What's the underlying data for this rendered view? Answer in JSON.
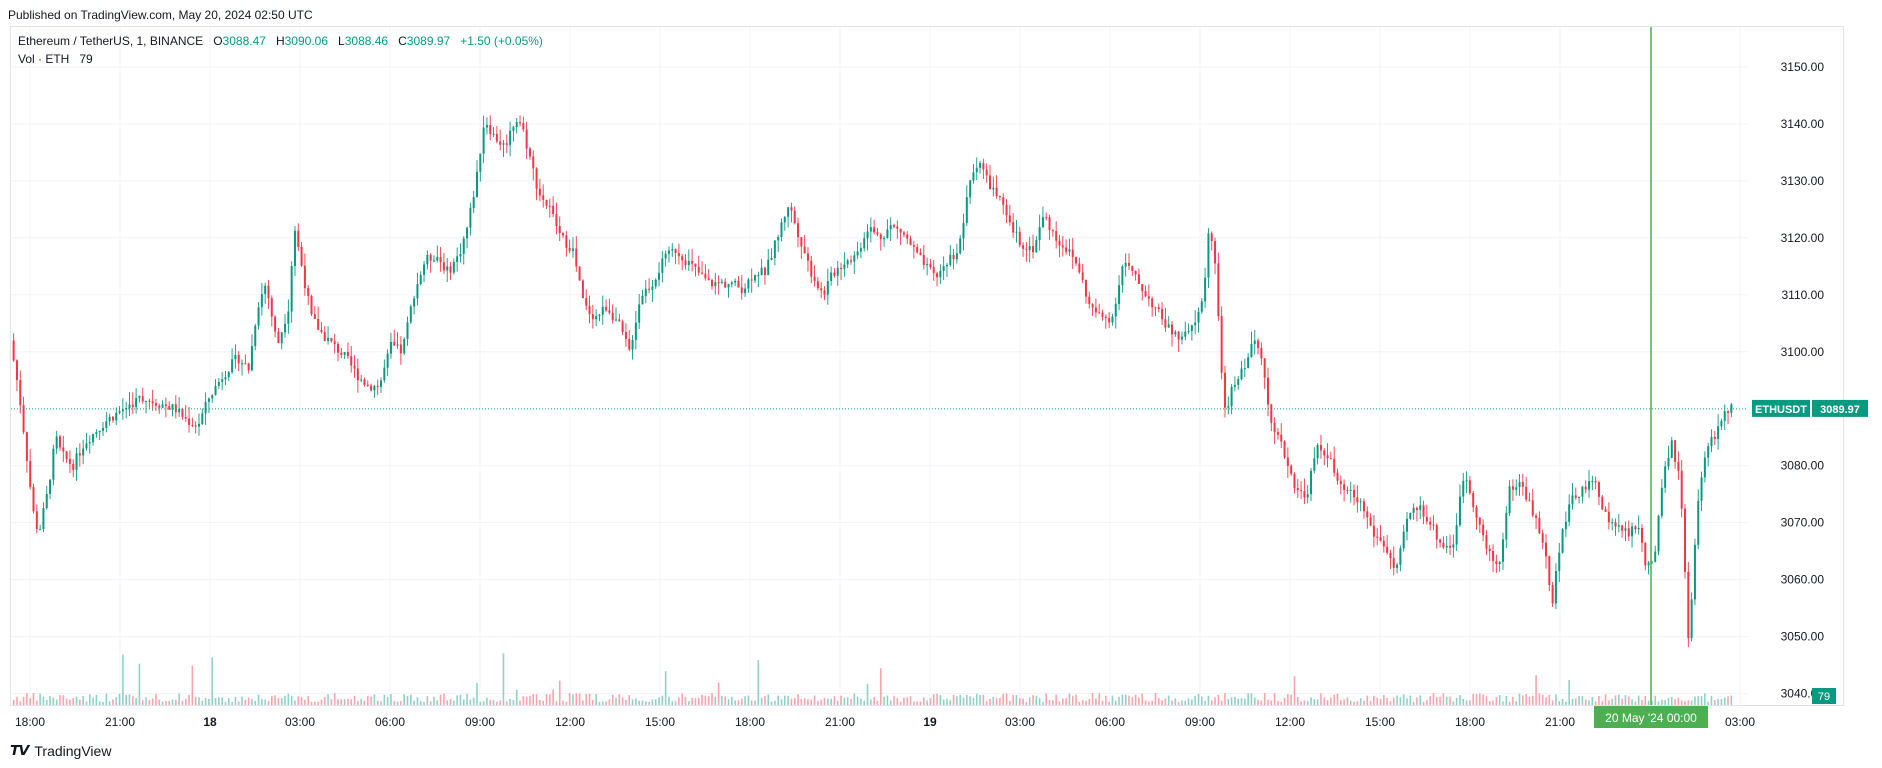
{
  "header": {
    "published": "Published on TradingView.com, May 20, 2024 02:50 UTC"
  },
  "legend": {
    "symbol": "Ethereum / TetherUS, 1, BINANCE",
    "open_label": "O",
    "open": "3088.47",
    "high_label": "H",
    "high": "3090.06",
    "low_label": "L",
    "low": "3088.46",
    "close_label": "C",
    "close": "3089.97",
    "change": "+1.50 (+0.05%)",
    "volume_label": "Vol · ETH",
    "volume": "79"
  },
  "price_tag": {
    "symbol": "ETHUSDT",
    "price": "3089.97"
  },
  "volume_tag": "79",
  "crosshair_time": "20 May '24   00:00",
  "footer": {
    "brand": "TradingView"
  },
  "colors": {
    "up": "#089981",
    "down": "#f23645",
    "crosshair": "#4caf50",
    "grid": "#f0f3fa"
  },
  "chart_data": {
    "type": "candlestick",
    "symbol": "ETHUSDT",
    "interval": "1",
    "y_ticks": [
      "3150.00",
      "3140.00",
      "3130.00",
      "3120.00",
      "3110.00",
      "3100.00",
      "3080.00",
      "3070.00",
      "3060.00",
      "3050.00",
      "3040.00"
    ],
    "x_ticks": [
      "18:00",
      "21:00",
      "18",
      "03:00",
      "06:00",
      "09:00",
      "12:00",
      "15:00",
      "18:00",
      "21:00",
      "19",
      "03:00",
      "06:00",
      "09:00",
      "12:00",
      "15:00",
      "18:00",
      "21:00",
      "03:00"
    ],
    "ylim": [
      3038,
      3157
    ],
    "last_price": 3089.97,
    "price_path": [
      [
        0,
        3102
      ],
      [
        0.3,
        3093
      ],
      [
        0.5,
        3085
      ],
      [
        0.8,
        3072
      ],
      [
        1.0,
        3068
      ],
      [
        1.3,
        3075
      ],
      [
        1.6,
        3085
      ],
      [
        1.8,
        3082
      ],
      [
        2.2,
        3080
      ],
      [
        2.6,
        3084
      ],
      [
        3.0,
        3086
      ],
      [
        3.4,
        3088
      ],
      [
        4.0,
        3090
      ],
      [
        4.6,
        3092
      ],
      [
        5.2,
        3091
      ],
      [
        5.8,
        3090
      ],
      [
        6.2,
        3088
      ],
      [
        6.6,
        3087
      ],
      [
        7.0,
        3092
      ],
      [
        7.5,
        3096
      ],
      [
        8.0,
        3099
      ],
      [
        8.4,
        3097
      ],
      [
        8.7,
        3108
      ],
      [
        9.0,
        3112
      ],
      [
        9.4,
        3101
      ],
      [
        9.8,
        3108
      ],
      [
        10.0,
        3122
      ],
      [
        10.3,
        3114
      ],
      [
        10.6,
        3106
      ],
      [
        11.0,
        3103
      ],
      [
        11.4,
        3101
      ],
      [
        11.8,
        3099
      ],
      [
        12.2,
        3096
      ],
      [
        12.6,
        3094
      ],
      [
        13.0,
        3094
      ],
      [
        13.4,
        3101
      ],
      [
        13.8,
        3100
      ],
      [
        14.2,
        3110
      ],
      [
        14.6,
        3116
      ],
      [
        15.0,
        3117
      ],
      [
        15.4,
        3114
      ],
      [
        15.8,
        3117
      ],
      [
        16.1,
        3122
      ],
      [
        16.4,
        3130
      ],
      [
        16.7,
        3141
      ],
      [
        17.0,
        3138
      ],
      [
        17.4,
        3136
      ],
      [
        17.8,
        3141
      ],
      [
        18.0,
        3140
      ],
      [
        18.3,
        3134
      ],
      [
        18.6,
        3128
      ],
      [
        19.0,
        3125
      ],
      [
        19.4,
        3120
      ],
      [
        19.8,
        3118
      ],
      [
        20.2,
        3108
      ],
      [
        20.6,
        3106
      ],
      [
        21.0,
        3108
      ],
      [
        21.4,
        3105
      ],
      [
        21.8,
        3100
      ],
      [
        22.2,
        3110
      ],
      [
        22.6,
        3112
      ],
      [
        23.0,
        3116
      ],
      [
        23.4,
        3118
      ],
      [
        23.8,
        3116
      ],
      [
        24.2,
        3114
      ],
      [
        24.6,
        3112
      ],
      [
        25.0,
        3112
      ],
      [
        25.4,
        3112
      ],
      [
        25.8,
        3111
      ],
      [
        26.2,
        3114
      ],
      [
        26.6,
        3114
      ],
      [
        27.0,
        3120
      ],
      [
        27.4,
        3126
      ],
      [
        27.8,
        3120
      ],
      [
        28.2,
        3114
      ],
      [
        28.6,
        3110
      ],
      [
        29.0,
        3114
      ],
      [
        29.4,
        3116
      ],
      [
        29.8,
        3117
      ],
      [
        30.2,
        3122
      ],
      [
        30.6,
        3120
      ],
      [
        31.0,
        3122
      ],
      [
        31.4,
        3121
      ],
      [
        31.8,
        3118
      ],
      [
        32.2,
        3115
      ],
      [
        32.6,
        3113
      ],
      [
        33.0,
        3116
      ],
      [
        33.4,
        3118
      ],
      [
        33.8,
        3130
      ],
      [
        34.1,
        3134
      ],
      [
        34.4,
        3130
      ],
      [
        34.8,
        3127
      ],
      [
        35.2,
        3122
      ],
      [
        35.6,
        3119
      ],
      [
        36.0,
        3118
      ],
      [
        36.4,
        3124
      ],
      [
        36.8,
        3120
      ],
      [
        37.2,
        3118
      ],
      [
        37.6,
        3115
      ],
      [
        38.0,
        3108
      ],
      [
        38.4,
        3106
      ],
      [
        38.8,
        3106
      ],
      [
        39.2,
        3116
      ],
      [
        39.6,
        3113
      ],
      [
        40.0,
        3110
      ],
      [
        40.4,
        3107
      ],
      [
        40.8,
        3104
      ],
      [
        41.2,
        3102
      ],
      [
        41.6,
        3104
      ],
      [
        42.0,
        3109
      ],
      [
        42.2,
        3122
      ],
      [
        42.4,
        3117
      ],
      [
        42.6,
        3100
      ],
      [
        42.8,
        3088
      ],
      [
        43.0,
        3093
      ],
      [
        43.4,
        3097
      ],
      [
        43.8,
        3102
      ],
      [
        44.1,
        3099
      ],
      [
        44.4,
        3087
      ],
      [
        44.8,
        3083
      ],
      [
        45.2,
        3077
      ],
      [
        45.6,
        3074
      ],
      [
        46.0,
        3083
      ],
      [
        46.4,
        3082
      ],
      [
        46.8,
        3076
      ],
      [
        47.2,
        3075
      ],
      [
        47.6,
        3073
      ],
      [
        48.0,
        3068
      ],
      [
        48.4,
        3066
      ],
      [
        48.8,
        3061
      ],
      [
        49.2,
        3071
      ],
      [
        49.6,
        3073
      ],
      [
        50.0,
        3070
      ],
      [
        50.4,
        3066
      ],
      [
        50.8,
        3066
      ],
      [
        51.2,
        3079
      ],
      [
        51.6,
        3072
      ],
      [
        52.0,
        3065
      ],
      [
        52.4,
        3062
      ],
      [
        52.8,
        3076
      ],
      [
        53.2,
        3077
      ],
      [
        53.6,
        3072
      ],
      [
        54.0,
        3066
      ],
      [
        54.3,
        3056
      ],
      [
        54.6,
        3068
      ],
      [
        55.0,
        3074
      ],
      [
        55.4,
        3076
      ],
      [
        55.8,
        3077
      ],
      [
        56.2,
        3071
      ],
      [
        56.6,
        3069
      ],
      [
        57.0,
        3068
      ],
      [
        57.3,
        3070
      ],
      [
        57.6,
        3062
      ],
      [
        57.9,
        3064
      ],
      [
        58.2,
        3078
      ],
      [
        58.5,
        3084
      ],
      [
        58.8,
        3077
      ],
      [
        59.1,
        3048
      ],
      [
        59.4,
        3072
      ],
      [
        59.7,
        3083
      ],
      [
        60.0,
        3085
      ],
      [
        60.3,
        3089
      ],
      [
        60.6,
        3090
      ]
    ]
  }
}
